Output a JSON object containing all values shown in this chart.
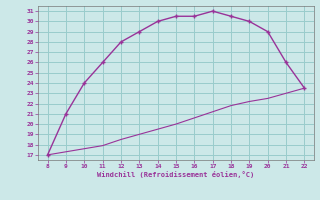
{
  "xlabel": "Windchill (Refroidissement éolien,°C)",
  "line1_x": [
    8,
    9,
    10,
    11,
    12,
    13,
    14,
    15,
    16,
    17,
    18,
    19,
    20,
    21,
    22
  ],
  "line1_y": [
    17,
    21,
    24,
    26,
    28,
    29,
    30,
    30.5,
    30.5,
    31,
    30.5,
    30,
    29,
    26,
    23.5
  ],
  "line2_x": [
    8,
    9,
    10,
    11,
    12,
    13,
    14,
    15,
    16,
    17,
    18,
    19,
    20,
    21,
    22
  ],
  "line2_y": [
    17,
    17.3,
    17.6,
    17.9,
    18.5,
    19.0,
    19.5,
    20.0,
    20.6,
    21.2,
    21.8,
    22.2,
    22.5,
    23.0,
    23.5
  ],
  "line_color": "#993399",
  "bg_color": "#cce8e8",
  "grid_color": "#99cccc",
  "tick_color": "#993399",
  "xlabel_color": "#993399",
  "xlim": [
    7.5,
    22.5
  ],
  "ylim": [
    16.5,
    31.5
  ],
  "xticks": [
    8,
    9,
    10,
    11,
    12,
    13,
    14,
    15,
    16,
    17,
    18,
    19,
    20,
    21,
    22
  ],
  "yticks": [
    17,
    18,
    19,
    20,
    21,
    22,
    23,
    24,
    25,
    26,
    27,
    28,
    29,
    30,
    31
  ],
  "marker_size": 3.5
}
